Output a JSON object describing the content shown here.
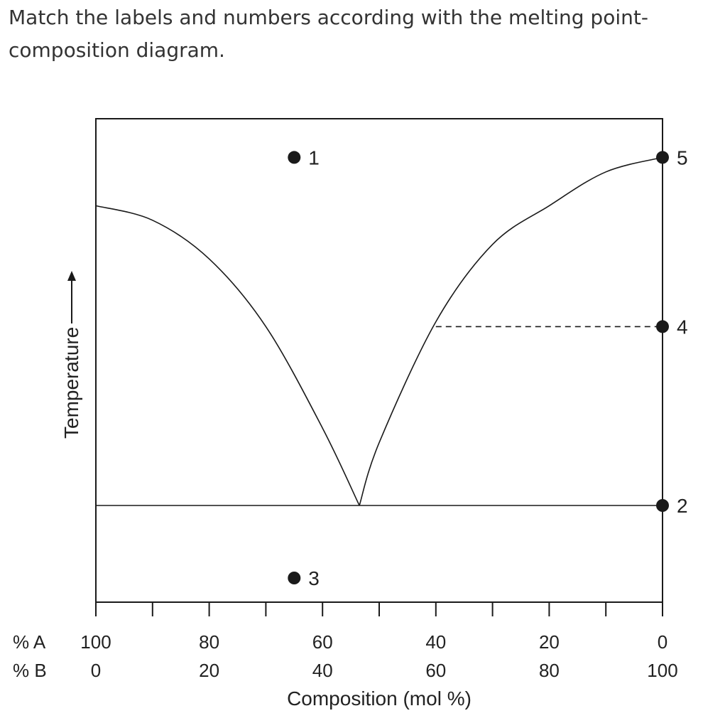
{
  "question": {
    "text": "Match the labels and numbers according with the melting point-composition diagram."
  },
  "colors": {
    "line": "#1a1a1a",
    "text": "#222222",
    "question_text": "#333333"
  },
  "chart_data": {
    "type": "line",
    "title": "",
    "xlabel": "Composition (mol %)",
    "ylabel": "Temperature",
    "xlim": [
      0,
      100
    ],
    "x_axis_variable": "% B",
    "grid": false,
    "axis_row_labels": {
      "a": "% A",
      "b": "% B"
    },
    "ticks": [
      {
        "b": 0,
        "a_label": "100",
        "b_label": "0",
        "labeled": true
      },
      {
        "b": 10,
        "labeled": false
      },
      {
        "b": 20,
        "a_label": "80",
        "b_label": "20",
        "labeled": true
      },
      {
        "b": 30,
        "labeled": false
      },
      {
        "b": 40,
        "a_label": "60",
        "b_label": "40",
        "labeled": true
      },
      {
        "b": 50,
        "labeled": false
      },
      {
        "b": 60,
        "a_label": "40",
        "b_label": "60",
        "labeled": true
      },
      {
        "b": 70,
        "labeled": false
      },
      {
        "b": 80,
        "a_label": "20",
        "b_label": "80",
        "labeled": true
      },
      {
        "b": 90,
        "labeled": false
      },
      {
        "b": 100,
        "a_label": "0",
        "b_label": "100",
        "labeled": true
      }
    ],
    "liquidus_left": [
      [
        0,
        0.82
      ],
      [
        10,
        0.79
      ],
      [
        20,
        0.71
      ],
      [
        30,
        0.57
      ],
      [
        40,
        0.36
      ],
      [
        46.5,
        0.2
      ]
    ],
    "liquidus_right": [
      [
        46.5,
        0.2
      ],
      [
        50,
        0.33
      ],
      [
        60,
        0.58
      ],
      [
        70,
        0.74
      ],
      [
        80,
        0.82
      ],
      [
        90,
        0.89
      ],
      [
        100,
        0.92
      ]
    ],
    "eutectic_line": {
      "y": 0.2,
      "from_b": 0,
      "to_b": 100
    },
    "tie_line": {
      "y": 0.57,
      "from_b": 60,
      "to_b": 100,
      "style": "dashed"
    },
    "points": [
      {
        "label": "1",
        "b": 35,
        "y": 0.92
      },
      {
        "label": "5",
        "b": 100,
        "y": 0.92
      },
      {
        "label": "4",
        "b": 100,
        "y": 0.57
      },
      {
        "label": "2",
        "b": 100,
        "y": 0.2
      },
      {
        "label": "3",
        "b": 35,
        "y": 0.05
      }
    ]
  }
}
